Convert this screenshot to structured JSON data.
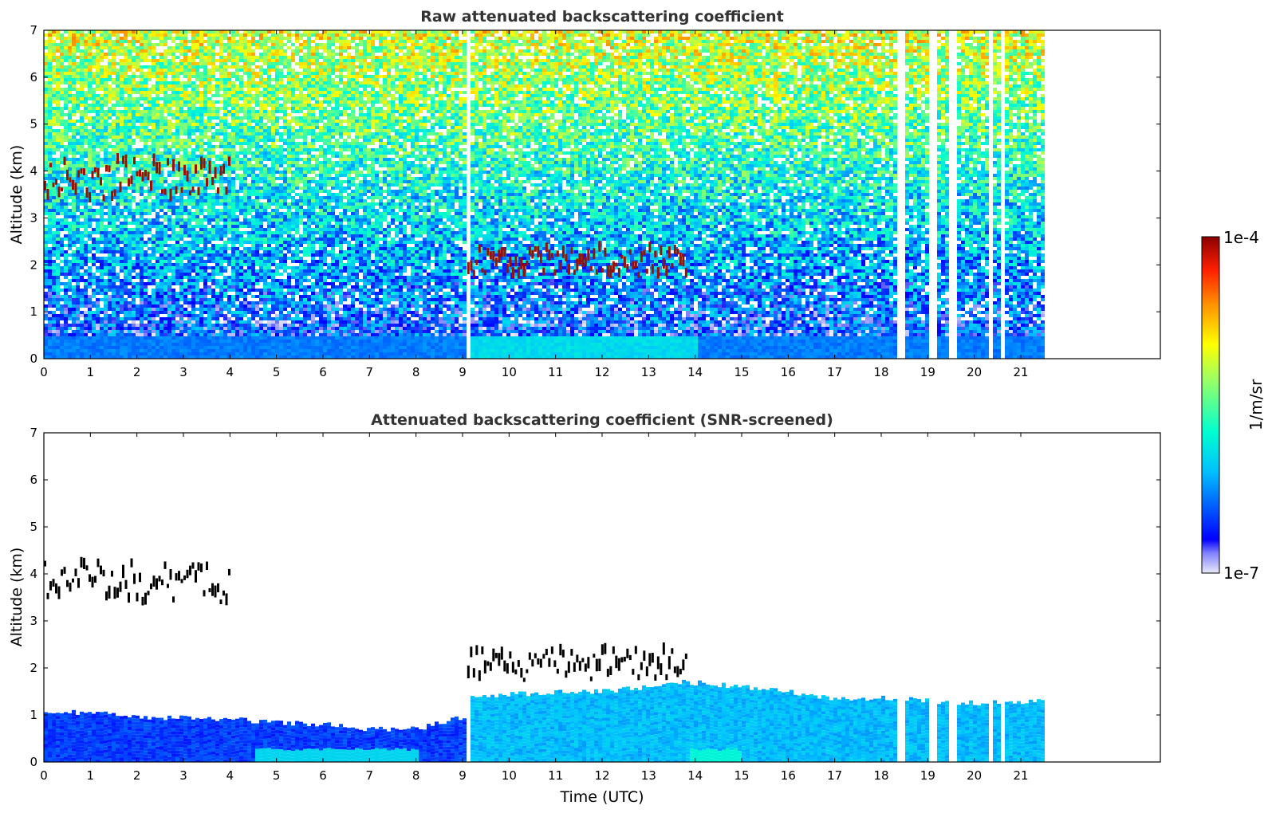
{
  "figure": {
    "colorbar": {
      "max_label": "1e-4",
      "min_label": "1e-7",
      "unit_label": "1/m/sr"
    }
  },
  "chart_data": [
    {
      "type": "heatmap",
      "title": "Raw attenuated backscattering coefficient",
      "xlabel": "",
      "ylabel": "Altitude (km)",
      "xlim": [
        0,
        24
      ],
      "ylim": [
        0,
        7
      ],
      "x_ticks": [
        "0",
        "1",
        "2",
        "3",
        "4",
        "5",
        "6",
        "7",
        "8",
        "9",
        "10",
        "11",
        "12",
        "13",
        "14",
        "15",
        "16",
        "17",
        "18",
        "19",
        "20",
        "21"
      ],
      "y_ticks": [
        "0",
        "1",
        "2",
        "3",
        "4",
        "5",
        "6",
        "7"
      ],
      "data_end_time": 21.45,
      "colorscale": [
        "#e8e8f8",
        "#0000ff",
        "#00bfff",
        "#00ffd0",
        "#a0ff60",
        "#ffff00",
        "#ff9000",
        "#ff2000",
        "#8b0000"
      ],
      "color_range": [
        1e-07,
        0.0001
      ],
      "color_scale_type": "log",
      "features": [
        {
          "name": "cloud layer",
          "time_start": 0.0,
          "time_end": 4.0,
          "altitude_km": [
            2.9,
            4.3
          ]
        },
        {
          "name": "cloud layer",
          "time_start": 9.1,
          "time_end": 13.8,
          "altitude_km": [
            1.4,
            2.4
          ]
        },
        {
          "name": "boundary layer",
          "time_start": 0.0,
          "time_end": 21.45,
          "altitude_km": [
            0,
            1.1
          ]
        }
      ],
      "data_gaps_time": [
        9.08,
        18.35,
        18.45,
        19.05,
        19.12,
        19.45,
        19.52,
        20.3,
        20.55
      ]
    },
    {
      "type": "heatmap",
      "title": "Attenuated backscattering coefficient (SNR-screened)",
      "xlabel": "Time (UTC)",
      "ylabel": "Altitude (km)",
      "xlim": [
        0,
        24
      ],
      "ylim": [
        0,
        7
      ],
      "x_ticks": [
        "0",
        "1",
        "2",
        "3",
        "4",
        "5",
        "6",
        "7",
        "8",
        "9",
        "10",
        "11",
        "12",
        "13",
        "14",
        "15",
        "16",
        "17",
        "18",
        "19",
        "20",
        "21"
      ],
      "y_ticks": [
        "0",
        "1",
        "2",
        "3",
        "4",
        "5",
        "6",
        "7"
      ],
      "data_end_time": 21.45,
      "colorscale": [
        "#e8e8f8",
        "#0000ff",
        "#00bfff",
        "#00ffd0",
        "#a0ff60",
        "#ffff00",
        "#ff9000",
        "#ff2000",
        "#8b0000"
      ],
      "color_range": [
        1e-07,
        0.0001
      ],
      "color_scale_type": "log",
      "boundary_layer_top_km": [
        [
          0,
          1.05
        ],
        [
          1,
          1.05
        ],
        [
          2,
          0.95
        ],
        [
          3,
          0.95
        ],
        [
          4,
          0.9
        ],
        [
          5,
          0.85
        ],
        [
          6,
          0.8
        ],
        [
          7,
          0.7
        ],
        [
          8,
          0.7
        ],
        [
          9,
          0.95
        ],
        [
          9.1,
          1.4
        ],
        [
          10,
          1.45
        ],
        [
          12,
          1.5
        ],
        [
          13.8,
          1.7
        ],
        [
          15,
          1.6
        ],
        [
          16,
          1.5
        ],
        [
          17,
          1.35
        ],
        [
          18,
          1.35
        ],
        [
          19,
          1.3
        ],
        [
          20,
          1.25
        ],
        [
          21.45,
          1.3
        ]
      ],
      "features": [
        {
          "name": "cloud layer",
          "time_start": 0.0,
          "time_end": 4.0,
          "altitude_km": [
            2.9,
            4.3
          ]
        },
        {
          "name": "cloud layer",
          "time_start": 9.1,
          "time_end": 13.8,
          "altitude_km": [
            1.4,
            2.4
          ]
        }
      ],
      "data_gaps_time": [
        9.08,
        18.35,
        18.45,
        19.05,
        19.12,
        19.45,
        19.52,
        20.3,
        20.55
      ]
    }
  ]
}
